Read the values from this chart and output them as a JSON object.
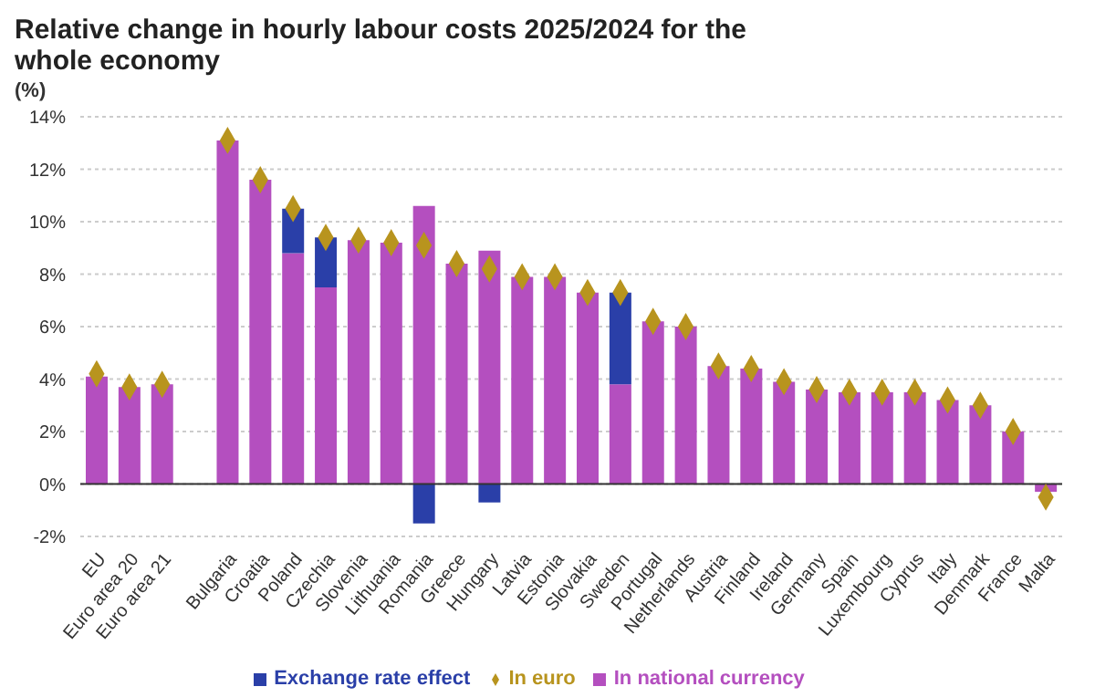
{
  "chart_data": {
    "type": "bar",
    "title": "Relative change in hourly labour costs 2025/2024 for the whole economy",
    "ylabel": "(%)",
    "categories": [
      "EU",
      "Euro area 20",
      "Euro area 21",
      null,
      "Bulgaria",
      "Croatia",
      "Poland",
      "Czechia",
      "Slovenia",
      "Lithuania",
      "Romania",
      "Greece",
      "Hungary",
      "Latvia",
      "Estonia",
      "Slovakia",
      "Sweden",
      "Portugal",
      "Netherlands",
      "Austria",
      "Finland",
      "Ireland",
      "Germany",
      "Spain",
      "Luxembourg",
      "Cyprus",
      "Italy",
      "Denmark",
      "France",
      "Malta"
    ],
    "stacked": true,
    "series": [
      {
        "name": "In national currency",
        "color": "#b44fbf",
        "values": [
          4.1,
          3.7,
          3.8,
          null,
          13.1,
          11.6,
          8.8,
          7.5,
          9.3,
          9.2,
          10.6,
          8.4,
          8.9,
          7.9,
          7.9,
          7.3,
          3.8,
          6.2,
          6.0,
          4.5,
          4.4,
          3.9,
          3.6,
          3.5,
          3.5,
          3.5,
          3.2,
          3.0,
          2.0,
          -0.3
        ]
      },
      {
        "name": "Exchange rate effect",
        "color": "#2a3fa8",
        "values": [
          null,
          null,
          null,
          null,
          null,
          null,
          1.7,
          1.9,
          null,
          null,
          -1.5,
          null,
          -0.7,
          null,
          null,
          null,
          3.5,
          null,
          null,
          null,
          null,
          null,
          null,
          null,
          null,
          null,
          null,
          null,
          null,
          null
        ]
      },
      {
        "name": "In euro",
        "type": "scatter",
        "marker": "diamond",
        "color": "#b8941e",
        "values": [
          4.2,
          3.7,
          3.8,
          null,
          13.1,
          11.6,
          10.5,
          9.4,
          9.3,
          9.2,
          9.1,
          8.4,
          8.2,
          7.9,
          7.9,
          7.3,
          7.3,
          6.2,
          6.0,
          4.5,
          4.4,
          3.9,
          3.6,
          3.5,
          3.5,
          3.5,
          3.2,
          3.0,
          2.0,
          -0.5
        ]
      }
    ],
    "ylim": [
      -2,
      14
    ],
    "yticks": [
      {
        "value": -2,
        "label": "-2%"
      },
      {
        "value": 0,
        "label": "0%"
      },
      {
        "value": 2,
        "label": "2%"
      },
      {
        "value": 4,
        "label": "4%"
      },
      {
        "value": 6,
        "label": "6%"
      },
      {
        "value": 8,
        "label": "8%"
      },
      {
        "value": 10,
        "label": "10%"
      },
      {
        "value": 12,
        "label": "12%"
      },
      {
        "value": 14,
        "label": "14%"
      }
    ],
    "grid": "y",
    "legend": "bottom"
  }
}
